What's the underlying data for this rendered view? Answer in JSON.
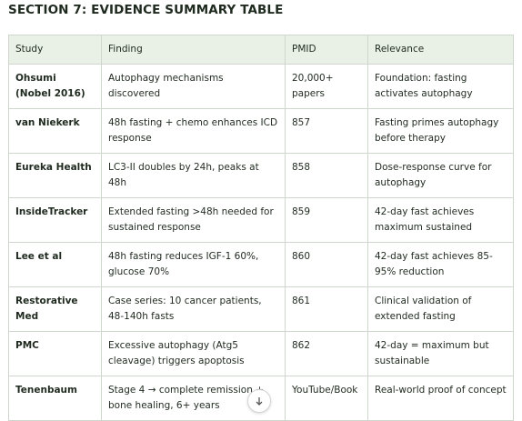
{
  "header": {
    "title": "SECTION 7: EVIDENCE SUMMARY TABLE"
  },
  "table": {
    "columns": [
      "Study",
      "Finding",
      "PMID",
      "Relevance"
    ],
    "rows": [
      [
        "Ohsumi (Nobel 2016)",
        "Autophagy mechanisms discovered",
        "20,000+ papers",
        "Foundation: fasting activates autophagy"
      ],
      [
        "van Niekerk",
        "48h fasting + chemo enhances ICD response",
        "857",
        "Fasting primes autophagy before therapy"
      ],
      [
        "Eureka Health",
        "LC3-II doubles by 24h, peaks at 48h",
        "858",
        "Dose-response curve for autophagy"
      ],
      [
        "InsideTracker",
        "Extended fasting >48h needed for sustained response",
        "859",
        "42-day fast achieves maximum sustained"
      ],
      [
        "Lee et al",
        "48h fasting reduces IGF-1 60%, glucose 70%",
        "860",
        "42-day fast achieves 85-95% reduction"
      ],
      [
        "Restorative Med",
        "Case series: 10 cancer patients, 48-140h fasts",
        "861",
        "Clinical validation of extended fasting"
      ],
      [
        "PMC",
        "Excessive autophagy (Atg5 cleavage) triggers apoptosis",
        "862",
        "42-day = maximum but sustainable"
      ],
      [
        "Tenenbaum",
        "Stage 4 → complete remission + bone healing, 6+ years",
        "YouTube/Book",
        "Real-world proof of concept"
      ]
    ]
  }
}
